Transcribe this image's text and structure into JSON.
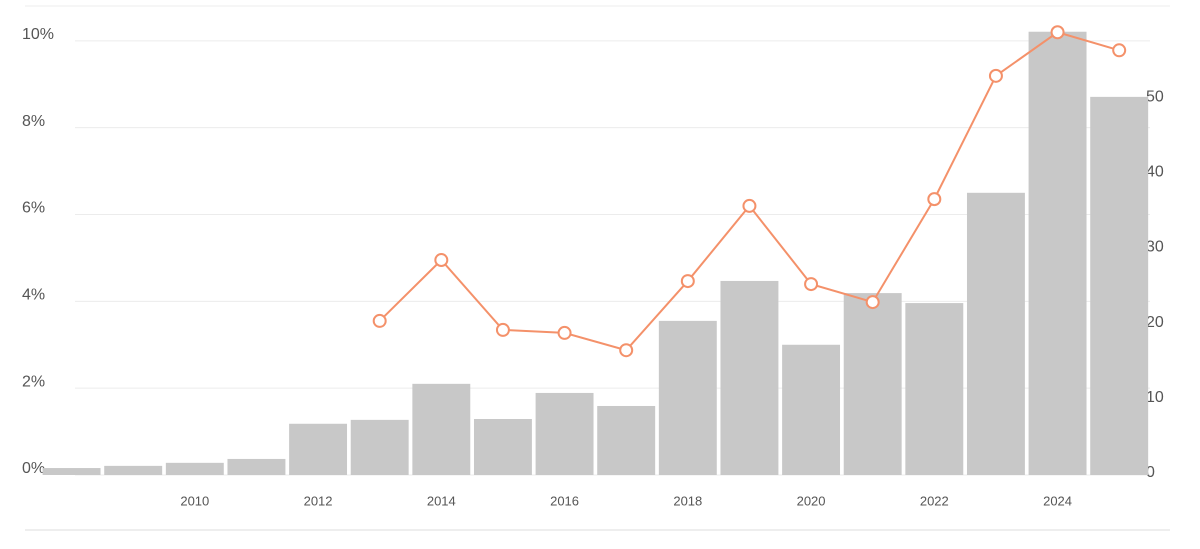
{
  "chart_data": {
    "type": "bar-line",
    "x": [
      2008,
      2009,
      2010,
      2011,
      2012,
      2013,
      2014,
      2015,
      2016,
      2017,
      2018,
      2019,
      2020,
      2021,
      2022,
      2023,
      2024,
      2025
    ],
    "xlim": [
      2007.65,
      2025.5
    ],
    "xticks": [
      2010,
      2012,
      2014,
      2016,
      2018,
      2020,
      2022,
      2024
    ],
    "ylim": [
      0,
      10.25
    ],
    "yticks": [
      {
        "value": 0,
        "label": "0%"
      },
      {
        "value": 2,
        "label": "2%"
      },
      {
        "value": 4,
        "label": "4%"
      },
      {
        "value": 6,
        "label": "6%"
      },
      {
        "value": 8,
        "label": "8%"
      },
      {
        "value": 10,
        "label": "10%"
      }
    ],
    "y2lim": [
      0,
      59.2
    ],
    "y2ticks": [
      0,
      10,
      20,
      30,
      40,
      50
    ],
    "grid": true,
    "series": [
      {
        "type": "bar",
        "color": "#c8c8c8",
        "values": [
          0.16,
          0.21,
          0.28,
          0.37,
          1.18,
          1.27,
          2.1,
          1.29,
          1.89,
          1.59,
          3.55,
          4.47,
          3.0,
          4.19,
          3.96,
          6.5,
          10.21,
          8.71
        ]
      },
      {
        "type": "line",
        "axis": "y2",
        "color": "#f4916a",
        "values": [
          null,
          null,
          null,
          null,
          null,
          20.5,
          28.6,
          19.3,
          18.9,
          16.6,
          25.8,
          35.8,
          25.4,
          23.0,
          36.7,
          53.1,
          58.9,
          56.5
        ]
      }
    ]
  }
}
